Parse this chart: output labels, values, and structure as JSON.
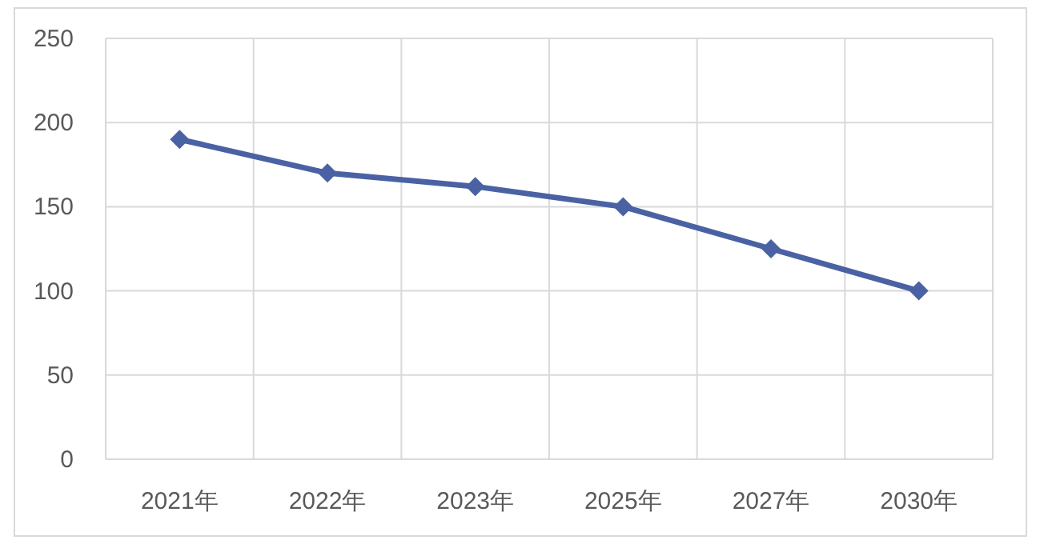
{
  "chart_data": {
    "type": "line",
    "categories": [
      "2021年",
      "2022年",
      "2023年",
      "2025年",
      "2027年",
      "2030年"
    ],
    "series": [
      {
        "color": "#4a62a3",
        "values": [
          190,
          170,
          162,
          150,
          125,
          100
        ]
      }
    ],
    "ylim": [
      0,
      250
    ],
    "yticks": [
      0,
      50,
      100,
      150,
      200,
      250
    ],
    "grid": true,
    "marker": "diamond",
    "line_style": "solid"
  }
}
